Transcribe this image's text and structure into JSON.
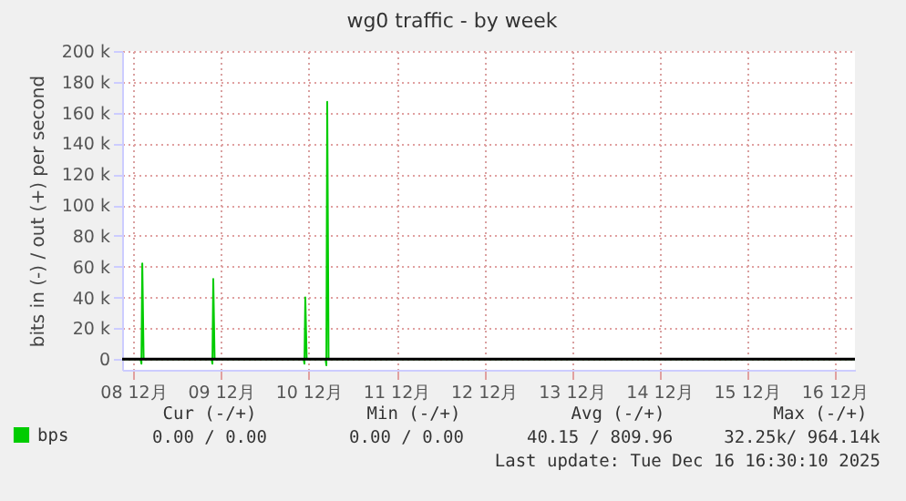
{
  "chart_data": {
    "type": "line",
    "title": "wg0 traffic - by week",
    "ylabel": "bits in (-) / out (+) per second",
    "x": [
      "2025-12-07T20:53",
      "2025-12-08T01:55",
      "2025-12-08T02:10",
      "2025-12-08T02:24",
      "2025-12-08T02:46",
      "2025-12-08T21:22",
      "2025-12-08T21:36",
      "2025-12-08T21:50",
      "2025-12-08T22:12",
      "2025-12-09T22:34",
      "2025-12-09T22:48",
      "2025-12-09T23:02",
      "2025-12-09T23:24",
      "2025-12-10T04:34",
      "2025-12-10T04:48",
      "2025-12-10T05:02",
      "2025-12-10T05:24",
      "2025-12-16T05:31"
    ],
    "series": [
      {
        "name": "bps",
        "color": "#00cc00",
        "values": [
          0,
          0,
          -3000,
          62000,
          0,
          0,
          -3000,
          52000,
          0,
          0,
          -3000,
          40000,
          0,
          0,
          -4000,
          167000,
          0,
          0
        ]
      }
    ],
    "xlim": [
      "2025-12-07T20:53",
      "2025-12-16T05:31"
    ],
    "xticks": [
      {
        "value": "2025-12-08",
        "label": "08 12月"
      },
      {
        "value": "2025-12-09",
        "label": "09 12月"
      },
      {
        "value": "2025-12-10",
        "label": "10 12月"
      },
      {
        "value": "2025-12-11",
        "label": "11 12月"
      },
      {
        "value": "2025-12-12",
        "label": "12 12月"
      },
      {
        "value": "2025-12-13",
        "label": "13 12月"
      },
      {
        "value": "2025-12-14",
        "label": "14 12月"
      },
      {
        "value": "2025-12-15",
        "label": "15 12月"
      },
      {
        "value": "2025-12-16",
        "label": "16 12月"
      }
    ],
    "ylim": [
      -7000,
      200000
    ],
    "yticks": [
      0,
      {
        "value": 20000,
        "label": "20 k"
      },
      {
        "value": 40000,
        "label": "40 k"
      },
      {
        "value": 60000,
        "label": "60 k"
      },
      {
        "value": 80000,
        "label": "80 k"
      },
      {
        "value": 100000,
        "label": "100 k"
      },
      {
        "value": 120000,
        "label": "120 k"
      },
      {
        "value": 140000,
        "label": "140 k"
      },
      {
        "value": 160000,
        "label": "160 k"
      },
      {
        "value": 180000,
        "label": "180 k"
      },
      {
        "value": 200000,
        "label": "200 k"
      }
    ],
    "ref_lines": [
      {
        "axis": "y",
        "value": 0,
        "color": "#000000"
      }
    ],
    "grid": true,
    "legend": "bottom left",
    "line_style": "solid",
    "marker": "none",
    "annotations": [
      "Cur (-/+)",
      "Min (-/+)",
      "Avg (-/+)",
      "Max (-/+)",
      "0.00 /   0.00",
      "0.00 /   0.00",
      "40.15 / 809.96",
      "32.25k/ 964.14k",
      "Last update: Tue Dec 16 16:30:10 2025"
    ]
  }
}
